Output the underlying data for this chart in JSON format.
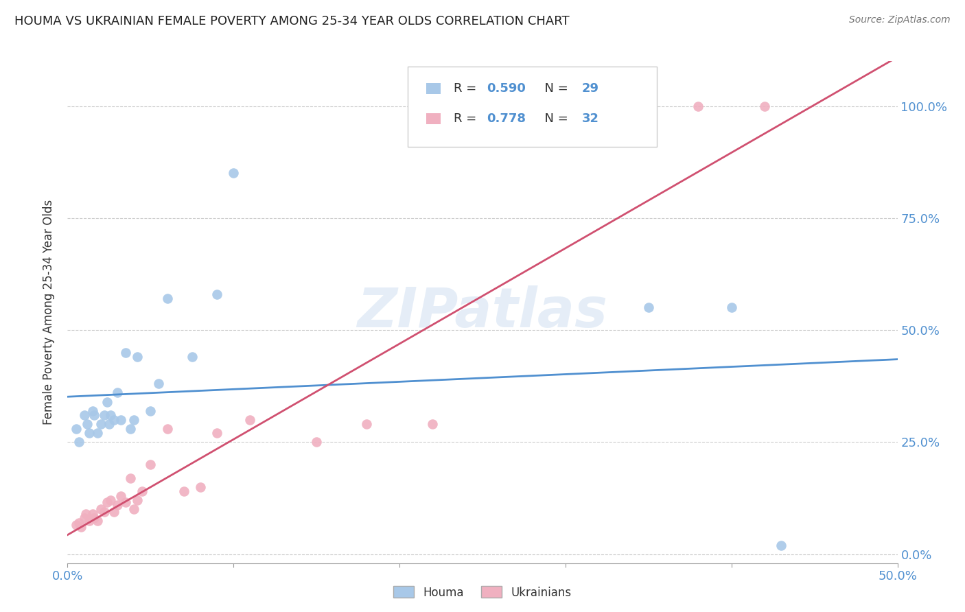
{
  "title": "HOUMA VS UKRAINIAN FEMALE POVERTY AMONG 25-34 YEAR OLDS CORRELATION CHART",
  "source": "Source: ZipAtlas.com",
  "ylabel_label": "Female Poverty Among 25-34 Year Olds",
  "houma_R": 0.59,
  "houma_N": 29,
  "ukr_R": 0.778,
  "ukr_N": 32,
  "houma_color": "#a8c8e8",
  "ukr_color": "#f0b0c0",
  "houma_line_color": "#5090d0",
  "ukr_line_color": "#d05070",
  "watermark": "ZIPatlas",
  "xlim": [
    0.0,
    0.5
  ],
  "ylim": [
    -0.02,
    1.1
  ],
  "x_tick_positions": [
    0.0,
    0.1,
    0.2,
    0.3,
    0.4,
    0.5
  ],
  "y_tick_positions": [
    0.0,
    0.25,
    0.5,
    0.75,
    1.0
  ],
  "houma_x": [
    0.005,
    0.007,
    0.01,
    0.012,
    0.013,
    0.015,
    0.016,
    0.018,
    0.02,
    0.022,
    0.024,
    0.025,
    0.026,
    0.028,
    0.03,
    0.032,
    0.035,
    0.038,
    0.04,
    0.042,
    0.05,
    0.055,
    0.06,
    0.075,
    0.09,
    0.1,
    0.35,
    0.4,
    0.43
  ],
  "houma_y": [
    0.28,
    0.25,
    0.31,
    0.29,
    0.27,
    0.32,
    0.31,
    0.27,
    0.29,
    0.31,
    0.34,
    0.29,
    0.31,
    0.3,
    0.36,
    0.3,
    0.45,
    0.28,
    0.3,
    0.44,
    0.32,
    0.38,
    0.57,
    0.44,
    0.58,
    0.85,
    0.55,
    0.55,
    0.02
  ],
  "ukr_x": [
    0.005,
    0.007,
    0.008,
    0.01,
    0.011,
    0.013,
    0.015,
    0.016,
    0.018,
    0.02,
    0.022,
    0.024,
    0.026,
    0.028,
    0.03,
    0.032,
    0.035,
    0.038,
    0.04,
    0.042,
    0.045,
    0.05,
    0.06,
    0.07,
    0.08,
    0.09,
    0.11,
    0.15,
    0.18,
    0.22,
    0.38,
    0.42
  ],
  "ukr_y": [
    0.065,
    0.07,
    0.06,
    0.08,
    0.09,
    0.075,
    0.09,
    0.08,
    0.075,
    0.1,
    0.095,
    0.115,
    0.12,
    0.095,
    0.11,
    0.13,
    0.115,
    0.17,
    0.1,
    0.12,
    0.14,
    0.2,
    0.28,
    0.14,
    0.15,
    0.27,
    0.3,
    0.25,
    0.29,
    0.29,
    1.0,
    1.0
  ]
}
